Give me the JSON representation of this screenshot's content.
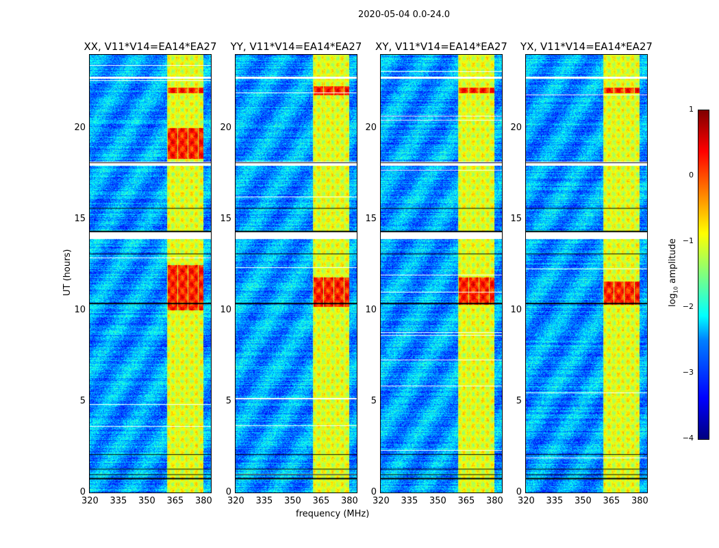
{
  "chart_data": {
    "type": "heatmap",
    "suptitle": "2020-05-04 0.0-24.0",
    "xlabel": "frequency (MHz)",
    "ylabel": "UT (hours)",
    "xlim": [
      320,
      384
    ],
    "ylim": [
      0,
      24
    ],
    "xticks": [
      "320",
      "335",
      "350",
      "365",
      "380"
    ],
    "yticks": [
      "0",
      "5",
      "10",
      "15",
      "20"
    ],
    "colorbar": {
      "label": "log10 amplitude",
      "range": [
        -4,
        1
      ],
      "ticks": [
        "1",
        "0",
        "−1",
        "−2",
        "−3",
        "−4"
      ],
      "colormap": "jet"
    },
    "background_level": -2.6,
    "rfi_band_mhz": [
      360.5,
      380
    ],
    "rfi_band_level": -1.0,
    "flagged_hours": [
      [
        13.9,
        14.3
      ],
      [
        17.95,
        18.15
      ],
      [
        22.7,
        22.8
      ]
    ],
    "panels": [
      {
        "title": "XX, V11*V14=EA14*EA27",
        "hot_hours": [
          [
            10,
            12.5
          ],
          [
            18.3,
            20
          ],
          [
            21.9,
            22.2
          ]
        ]
      },
      {
        "title": "YY, V11*V14=EA14*EA27",
        "hot_hours": [
          [
            10.2,
            11.8
          ],
          [
            21.8,
            22.3
          ]
        ]
      },
      {
        "title": "XY, V11*V14=EA14*EA27",
        "hot_hours": [
          [
            10.3,
            11.8
          ],
          [
            21.9,
            22.2
          ]
        ]
      },
      {
        "title": "YX, V11*V14=EA14*EA27",
        "hot_hours": [
          [
            10.3,
            11.6
          ],
          [
            21.9,
            22.2
          ]
        ]
      }
    ]
  }
}
